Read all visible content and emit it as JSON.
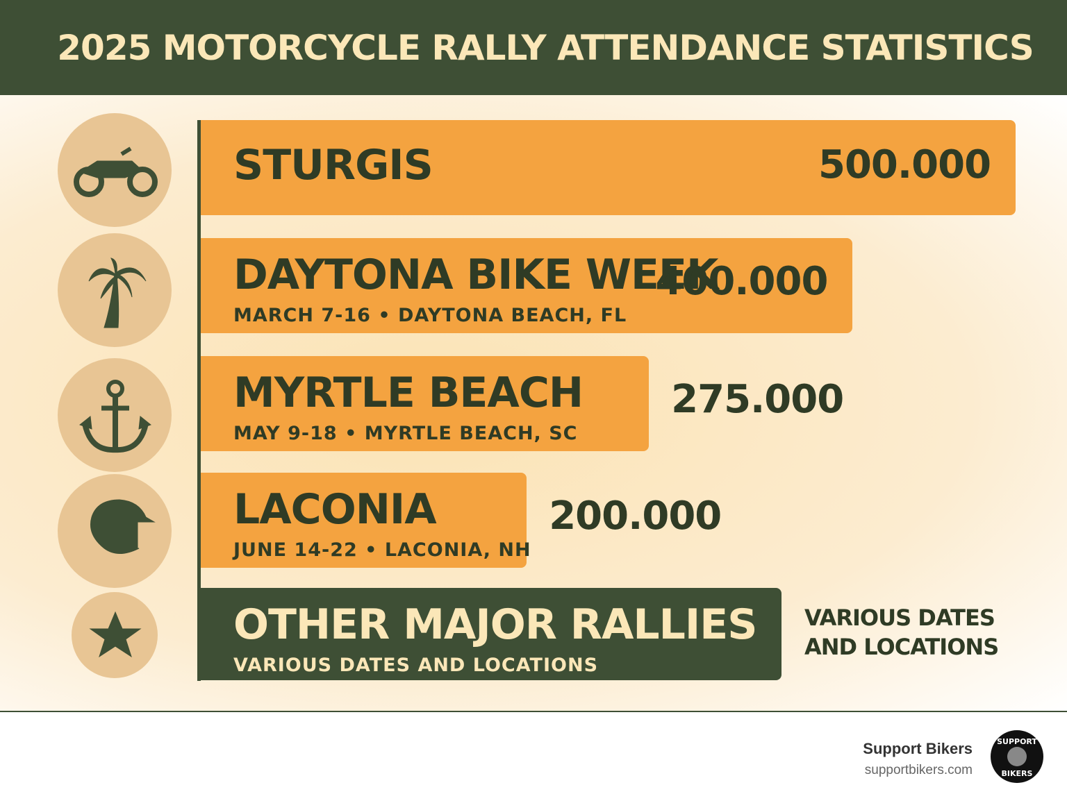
{
  "chart_data": {
    "type": "bar",
    "orientation": "horizontal",
    "title": "2025 MOTORCYCLE RALLY ATTENDANCE STATISTICS",
    "categories": [
      "STURGIS",
      "DAYTONA BIKE WEEK",
      "MYRTLE BEACH",
      "LACONIA",
      "OTHER MAJOR RALLIES"
    ],
    "subtitles": [
      null,
      "MARCH 7-16 • DAYTONA BEACH, FL",
      "MAY 9-18 • MYRTLE BEACH, SC",
      "JUNE 14-22 • LACONIA, NH",
      "VARIOUS DATES AND LOCATIONS"
    ],
    "values": [
      500000,
      400000,
      275000,
      200000,
      null
    ],
    "value_labels": [
      "500.000",
      "400.000",
      "275.000",
      "200.000",
      "VARIOUS DATES AND LOCATIONS"
    ],
    "colors": [
      "#f4a340",
      "#f4a340",
      "#f4a340",
      "#f4a340",
      "#3e4f35"
    ],
    "xlim": [
      0,
      500000
    ]
  },
  "footer": {
    "brand": "Support Bikers",
    "url": "supportbikers.com",
    "logo_top": "SUPPORT",
    "logo_bottom": "BIKERS"
  }
}
